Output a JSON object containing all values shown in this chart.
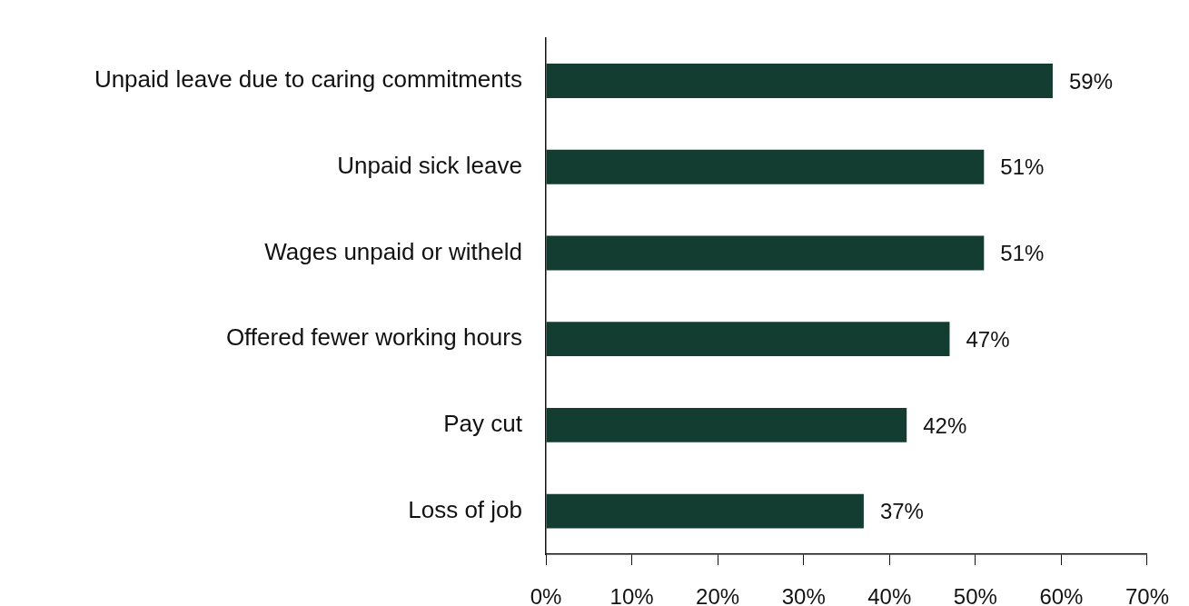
{
  "chart_data": {
    "type": "bar",
    "orientation": "horizontal",
    "categories": [
      "Unpaid leave due to caring commitments",
      "Unpaid sick leave",
      "Wages unpaid or witheld",
      "Offered fewer working hours",
      "Pay cut",
      "Loss of job"
    ],
    "values": [
      59,
      51,
      51,
      47,
      42,
      37
    ],
    "value_labels": [
      "59%",
      "51%",
      "51%",
      "47%",
      "42%",
      "37%"
    ],
    "color": "#123d30",
    "xlim": [
      0,
      70
    ],
    "xticks": [
      {
        "value": 0,
        "label": "0%"
      },
      {
        "value": 10,
        "label": "10%"
      },
      {
        "value": 20,
        "label": "20%"
      },
      {
        "value": 30,
        "label": "30%"
      },
      {
        "value": 40,
        "label": "40%"
      },
      {
        "value": 50,
        "label": "50%"
      },
      {
        "value": 60,
        "label": "60%"
      },
      {
        "value": 70,
        "label": "70%"
      }
    ],
    "grid": false,
    "legend": false
  }
}
